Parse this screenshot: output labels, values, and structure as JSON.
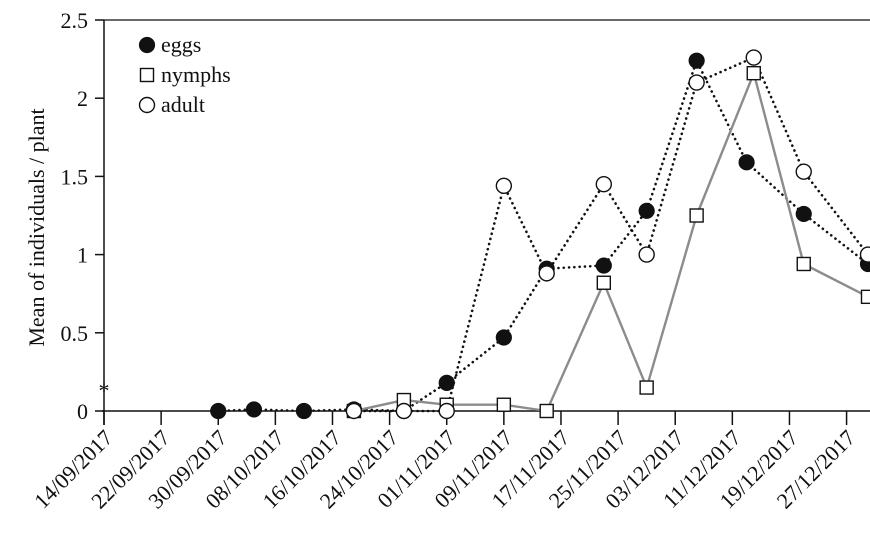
{
  "chart_data": {
    "type": "line",
    "title": "",
    "xlabel": "",
    "ylabel": "Mean of individuals / plant",
    "x_ticks": [
      "14/09/2017",
      "22/09/2017",
      "30/09/2017",
      "08/10/2017",
      "16/10/2017",
      "24/10/2017",
      "01/11/2017",
      "09/11/2017",
      "17/11/2017",
      "25/11/2017",
      "03/12/2017",
      "11/12/2017",
      "19/12/2017",
      "27/12/2017"
    ],
    "y_ticks": [
      "0",
      "0.5",
      "1",
      "1.5",
      "2",
      "2.5"
    ],
    "xlim": [
      "2017-09-14",
      "2017-12-30"
    ],
    "ylim": [
      0,
      2.5
    ],
    "legend_position": "top-left",
    "annotation": "*",
    "series": [
      {
        "name": "eggs",
        "marker": "filled-circle",
        "line_style": "dotted",
        "line_color": "#111111",
        "points": [
          {
            "x": "2017-09-30",
            "y": 0.0
          },
          {
            "x": "2017-10-05",
            "y": 0.01
          },
          {
            "x": "2017-10-12",
            "y": 0.0
          },
          {
            "x": "2017-10-19",
            "y": 0.01
          },
          {
            "x": "2017-10-26",
            "y": 0.0
          },
          {
            "x": "2017-11-01",
            "y": 0.18
          },
          {
            "x": "2017-11-09",
            "y": 0.47
          },
          {
            "x": "2017-11-15",
            "y": 0.91
          },
          {
            "x": "2017-11-23",
            "y": 0.93
          },
          {
            "x": "2017-11-29",
            "y": 1.28
          },
          {
            "x": "2017-12-06",
            "y": 2.24
          },
          {
            "x": "2017-12-13",
            "y": 1.59
          },
          {
            "x": "2017-12-21",
            "y": 1.26
          },
          {
            "x": "2017-12-30",
            "y": 0.94
          }
        ]
      },
      {
        "name": "nymphs",
        "marker": "open-square",
        "line_style": "solid",
        "line_color": "#8c8c8c",
        "points": [
          {
            "x": "2017-10-19",
            "y": 0.0
          },
          {
            "x": "2017-10-26",
            "y": 0.07
          },
          {
            "x": "2017-11-01",
            "y": 0.04
          },
          {
            "x": "2017-11-09",
            "y": 0.04
          },
          {
            "x": "2017-11-15",
            "y": 0.0
          },
          {
            "x": "2017-11-23",
            "y": 0.82
          },
          {
            "x": "2017-11-29",
            "y": 0.15
          },
          {
            "x": "2017-12-06",
            "y": 1.25
          },
          {
            "x": "2017-12-14",
            "y": 2.16
          },
          {
            "x": "2017-12-21",
            "y": 0.94
          },
          {
            "x": "2017-12-30",
            "y": 0.73
          }
        ]
      },
      {
        "name": "adult",
        "marker": "open-circle",
        "line_style": "dotted",
        "line_color": "#111111",
        "points": [
          {
            "x": "2017-10-19",
            "y": 0.0
          },
          {
            "x": "2017-10-26",
            "y": 0.0
          },
          {
            "x": "2017-11-01",
            "y": 0.0
          },
          {
            "x": "2017-11-09",
            "y": 1.44
          },
          {
            "x": "2017-11-15",
            "y": 0.88
          },
          {
            "x": "2017-11-23",
            "y": 1.45
          },
          {
            "x": "2017-11-29",
            "y": 1.0
          },
          {
            "x": "2017-12-06",
            "y": 2.1
          },
          {
            "x": "2017-12-14",
            "y": 2.26
          },
          {
            "x": "2017-12-21",
            "y": 1.53
          },
          {
            "x": "2017-12-30",
            "y": 1.0
          }
        ]
      }
    ]
  }
}
